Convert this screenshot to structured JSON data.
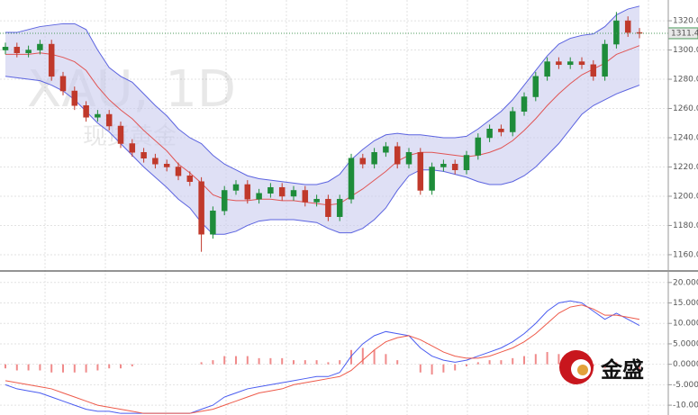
{
  "chart_data": [
    {
      "type": "candlestick",
      "title": "XAU, 1D",
      "subtitle": "现货黄金",
      "up_color": "#1e8c3a",
      "down_color": "#c0392b",
      "open": [
        1300,
        1302,
        1298,
        1300,
        1304,
        1282,
        1272,
        1262,
        1254,
        1256,
        1248,
        1236,
        1230,
        1226,
        1222,
        1220,
        1214,
        1210,
        1174,
        1190,
        1204,
        1208,
        1198,
        1202,
        1206,
        1200,
        1204,
        1196,
        1198,
        1186,
        1198,
        1226,
        1222,
        1230,
        1234,
        1222,
        1230,
        1204,
        1220,
        1222,
        1218,
        1228,
        1240,
        1246,
        1244,
        1258,
        1268,
        1282,
        1292,
        1290,
        1292,
        1290,
        1282,
        1304,
        1320,
        1312
      ],
      "high": [
        1305,
        1305,
        1303,
        1307,
        1307,
        1285,
        1275,
        1265,
        1259,
        1259,
        1251,
        1239,
        1233,
        1229,
        1225,
        1223,
        1217,
        1213,
        1193,
        1207,
        1211,
        1211,
        1205,
        1209,
        1209,
        1207,
        1207,
        1201,
        1201,
        1201,
        1229,
        1229,
        1233,
        1237,
        1237,
        1233,
        1233,
        1223,
        1225,
        1225,
        1231,
        1243,
        1249,
        1249,
        1261,
        1271,
        1285,
        1295,
        1295,
        1295,
        1295,
        1293,
        1307,
        1326,
        1323,
        1315
      ],
      "low": [
        1297,
        1295,
        1295,
        1297,
        1279,
        1269,
        1259,
        1251,
        1251,
        1245,
        1233,
        1227,
        1223,
        1219,
        1217,
        1211,
        1207,
        1162,
        1171,
        1187,
        1201,
        1195,
        1195,
        1199,
        1197,
        1197,
        1193,
        1193,
        1183,
        1183,
        1195,
        1219,
        1219,
        1227,
        1219,
        1219,
        1201,
        1201,
        1217,
        1215,
        1215,
        1225,
        1237,
        1241,
        1241,
        1255,
        1265,
        1279,
        1287,
        1287,
        1287,
        1279,
        1279,
        1301,
        1309,
        1308
      ],
      "close": [
        1302,
        1298,
        1300,
        1304,
        1282,
        1272,
        1262,
        1254,
        1256,
        1248,
        1236,
        1230,
        1226,
        1222,
        1220,
        1214,
        1210,
        1174,
        1190,
        1204,
        1208,
        1198,
        1202,
        1206,
        1200,
        1204,
        1196,
        1198,
        1186,
        1198,
        1226,
        1222,
        1230,
        1234,
        1222,
        1230,
        1204,
        1220,
        1222,
        1218,
        1228,
        1240,
        1246,
        1244,
        1258,
        1268,
        1282,
        1292,
        1290,
        1292,
        1290,
        1282,
        1304,
        1320,
        1312,
        1311.44
      ],
      "bands": {
        "color": "#5b63e0",
        "fill": "#c9cbee",
        "middle_color": "#e05555",
        "upper": [
          1312,
          1312,
          1314,
          1316,
          1317,
          1318,
          1318,
          1314,
          1300,
          1288,
          1282,
          1278,
          1270,
          1262,
          1255,
          1246,
          1240,
          1236,
          1228,
          1222,
          1218,
          1214,
          1212,
          1211,
          1210,
          1209,
          1208,
          1208,
          1210,
          1215,
          1225,
          1232,
          1238,
          1242,
          1243,
          1242,
          1242,
          1241,
          1240,
          1240,
          1241,
          1246,
          1252,
          1258,
          1266,
          1276,
          1286,
          1296,
          1304,
          1308,
          1310,
          1311,
          1316,
          1324,
          1328,
          1330
        ],
        "middle": [
          1297,
          1297,
          1297,
          1298,
          1297,
          1295,
          1292,
          1286,
          1275,
          1266,
          1259,
          1253,
          1245,
          1238,
          1231,
          1222,
          1216,
          1209,
          1201,
          1198,
          1197,
          1197,
          1198,
          1198,
          1197,
          1197,
          1196,
          1195,
          1194,
          1195,
          1200,
          1205,
          1211,
          1217,
          1224,
          1228,
          1230,
          1230,
          1229,
          1228,
          1227,
          1228,
          1230,
          1233,
          1238,
          1245,
          1253,
          1262,
          1270,
          1277,
          1283,
          1287,
          1291,
          1297,
          1300,
          1303
        ],
        "lower": [
          1282,
          1281,
          1280,
          1279,
          1276,
          1272,
          1266,
          1258,
          1250,
          1244,
          1236,
          1228,
          1220,
          1213,
          1206,
          1198,
          1192,
          1182,
          1174,
          1174,
          1176,
          1180,
          1183,
          1184,
          1184,
          1184,
          1183,
          1182,
          1178,
          1175,
          1175,
          1178,
          1184,
          1192,
          1204,
          1214,
          1218,
          1218,
          1217,
          1215,
          1213,
          1210,
          1208,
          1208,
          1210,
          1214,
          1220,
          1228,
          1236,
          1246,
          1256,
          1262,
          1266,
          1270,
          1273,
          1276
        ]
      },
      "last_price": {
        "value": 1311.44,
        "label": "1311.44"
      },
      "last_price_color": "#4a9a5a",
      "ylim": [
        1149.5,
        1334.2
      ],
      "yticks": [
        {
          "value": 1160,
          "label": "1160.00"
        },
        {
          "value": 1180,
          "label": "1180.00"
        },
        {
          "value": 1200,
          "label": "1200.00"
        },
        {
          "value": 1220,
          "label": "1220.00"
        },
        {
          "value": 1240,
          "label": "1240.00"
        },
        {
          "value": 1260,
          "label": "1260.00"
        },
        {
          "value": 1280,
          "label": "1280.00"
        },
        {
          "value": 1300,
          "label": "1300.00"
        },
        {
          "value": 1320,
          "label": "1320.00"
        }
      ],
      "grid": true
    },
    {
      "type": "macd",
      "series": [
        {
          "color": "#4a5cf0",
          "values": [
            -5,
            -6,
            -6.5,
            -7,
            -8,
            -9,
            -10,
            -11,
            -11.5,
            -11.5,
            -12,
            -12,
            -12,
            -12,
            -12,
            -12,
            -12,
            -11,
            -10,
            -8,
            -7,
            -6,
            -5.5,
            -5,
            -4.5,
            -4,
            -3.5,
            -3,
            -3,
            -2,
            2,
            5,
            7,
            8,
            7.5,
            7,
            4,
            2,
            1,
            0.5,
            1,
            2,
            3,
            4,
            5.5,
            7.5,
            10,
            13,
            15,
            15.5,
            15,
            13,
            11,
            12.5,
            11,
            9.5
          ]
        },
        {
          "color": "#ee5a4a",
          "values": [
            -4,
            -4.5,
            -5,
            -5.5,
            -6,
            -7,
            -8,
            -9,
            -10,
            -10.5,
            -11,
            -11.5,
            -12,
            -12,
            -12,
            -12,
            -12,
            -11.5,
            -11,
            -10,
            -9,
            -8,
            -7,
            -6.5,
            -6,
            -5,
            -4.5,
            -4,
            -3.5,
            -3,
            -1.5,
            1,
            3.5,
            5.5,
            6.5,
            7,
            6,
            4.5,
            3,
            2,
            1.5,
            1.5,
            2,
            3,
            4,
            5.5,
            7.5,
            10,
            12.5,
            14,
            14.5,
            13.5,
            12,
            12,
            11.5,
            11
          ]
        }
      ],
      "histogram": {
        "color": "#f08a8a",
        "values": [
          -1,
          -1.5,
          -1.5,
          -1.5,
          -2,
          -2,
          -2,
          -2,
          -1.5,
          -1,
          -1,
          -0.5,
          0,
          0,
          0,
          0,
          0,
          0.5,
          1,
          2,
          2,
          2,
          1.5,
          1.5,
          1.5,
          1,
          1,
          1,
          0.5,
          1,
          3.5,
          4,
          3.5,
          2.5,
          1,
          0,
          -2,
          -2.5,
          -2,
          -1.5,
          -0.5,
          0.5,
          1,
          1,
          1.5,
          2,
          2.5,
          3,
          2.5,
          1.5,
          0.5,
          -0.5,
          -1,
          0.5,
          -0.5,
          -1.5
        ]
      },
      "ylim": [
        -12.4,
        22.6
      ],
      "yticks": [
        {
          "value": 20,
          "label": "20.0000"
        },
        {
          "value": 15,
          "label": "15.0000"
        },
        {
          "value": 10,
          "label": "10.0000"
        },
        {
          "value": 5,
          "label": "5.0000"
        },
        {
          "value": 0,
          "label": "0.0000"
        },
        {
          "value": -5,
          "label": "-5.0000"
        },
        {
          "value": -10,
          "label": "-10.0000"
        }
      ],
      "grid": true
    }
  ],
  "logo_text": "金盛"
}
